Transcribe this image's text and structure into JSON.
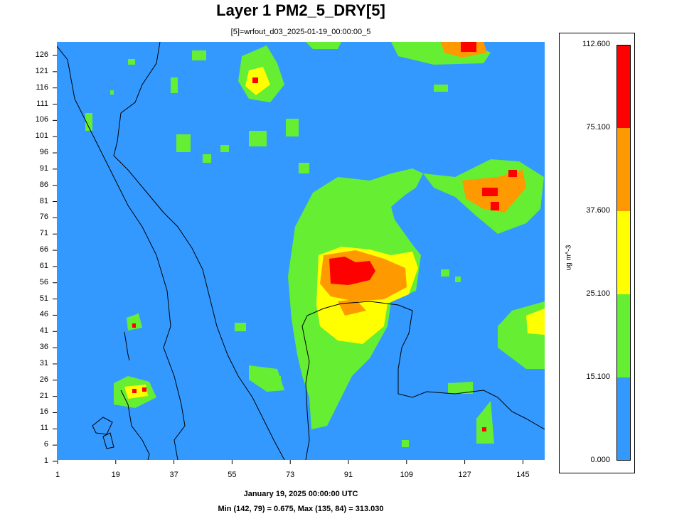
{
  "title": "Layer 1 PM2_5_DRY[5]",
  "subtitle": "[5]=wrfout_d03_2025-01-19_00:00:00_5",
  "footer": {
    "date": "January 19, 2025 00:00:00 UTC",
    "stats": "Min (142, 79) = 0.675, Max (135, 84) = 313.030"
  },
  "axes": {
    "x_ticks": [
      "1",
      "19",
      "37",
      "55",
      "73",
      "91",
      "109",
      "127",
      "145"
    ],
    "y_ticks": [
      "126",
      "121",
      "116",
      "111",
      "106",
      "101",
      "96",
      "91",
      "86",
      "81",
      "76",
      "71",
      "66",
      "61",
      "56",
      "51",
      "46",
      "41",
      "36",
      "31",
      "26",
      "21",
      "16",
      "11",
      "6",
      "1"
    ]
  },
  "legend": {
    "units": "ug m^-3",
    "labels": [
      "112.600",
      "75.100",
      "37.600",
      "25.100",
      "15.100",
      "0.000"
    ],
    "colors": [
      "#ff0000",
      "#ff9900",
      "#ffff00",
      "#66ee33",
      "#3399ff"
    ]
  },
  "chart_data": {
    "type": "heatmap",
    "x_range": [
      1,
      150
    ],
    "y_range": [
      1,
      129
    ],
    "min": {
      "x": 142,
      "y": 79,
      "value": 0.675
    },
    "max": {
      "x": 135,
      "y": 84,
      "value": 313.03
    },
    "bins": [
      {
        "from": 0.0,
        "to": 15.1,
        "color": "#3399ff"
      },
      {
        "from": 15.1,
        "to": 25.1,
        "color": "#66ee33"
      },
      {
        "from": 25.1,
        "to": 37.6,
        "color": "#ffff00"
      },
      {
        "from": 37.6,
        "to": 75.1,
        "color": "#ff9900"
      },
      {
        "from": 75.1,
        "to": 112.6,
        "color": "#ff0000"
      }
    ]
  }
}
